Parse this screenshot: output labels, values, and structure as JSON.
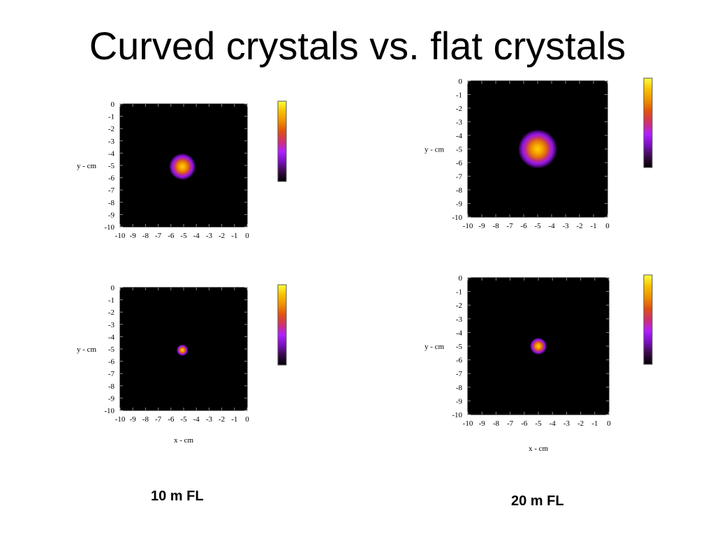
{
  "slide": {
    "title": "Curved crystals vs. flat crystals",
    "captions": [
      "10 m FL",
      "20 m FL"
    ]
  },
  "colors": {
    "plot_background": "#000000",
    "colormap": [
      "#000000",
      "#3a0a4a",
      "#7a10c0",
      "#b020ff",
      "#d03070",
      "#e05010",
      "#f09000",
      "#f8c000",
      "#ffff40"
    ]
  },
  "chart_data": [
    {
      "type": "heatmap",
      "xlim": [
        -10,
        0
      ],
      "ylim": [
        -10,
        0
      ],
      "xticks": [
        -10,
        -9,
        -8,
        -7,
        -6,
        -5,
        -4,
        -3,
        -2,
        -1,
        0
      ],
      "yticks": [
        0,
        -1,
        -2,
        -3,
        -4,
        -5,
        -6,
        -7,
        -8,
        -9,
        -10
      ],
      "xlabel": "",
      "ylabel": "y - cm",
      "spot": {
        "center_x": -5.1,
        "center_y": -5.1,
        "radius_cm": 1.05
      },
      "colorbar": true
    },
    {
      "type": "heatmap",
      "xlim": [
        -10,
        0
      ],
      "ylim": [
        -10,
        0
      ],
      "xticks": [
        -10,
        -9,
        -8,
        -7,
        -6,
        -5,
        -4,
        -3,
        -2,
        -1,
        0
      ],
      "yticks": [
        0,
        -1,
        -2,
        -3,
        -4,
        -5,
        -6,
        -7,
        -8,
        -9,
        -10
      ],
      "xlabel": "",
      "ylabel": "y - cm",
      "spot": {
        "center_x": -5.0,
        "center_y": -5.0,
        "radius_cm": 1.4
      },
      "colorbar": true
    },
    {
      "type": "heatmap",
      "xlim": [
        -10,
        0
      ],
      "ylim": [
        -10,
        0
      ],
      "xticks": [
        -10,
        -9,
        -8,
        -7,
        -6,
        -5,
        -4,
        -3,
        -2,
        -1,
        0
      ],
      "yticks": [
        0,
        -1,
        -2,
        -3,
        -4,
        -5,
        -6,
        -7,
        -8,
        -9,
        -10
      ],
      "xlabel": "x - cm",
      "ylabel": "y - cm",
      "spot": {
        "center_x": -5.1,
        "center_y": -5.1,
        "radius_cm": 0.45
      },
      "colorbar": true
    },
    {
      "type": "heatmap",
      "xlim": [
        -10,
        0
      ],
      "ylim": [
        -10,
        0
      ],
      "xticks": [
        -10,
        -9,
        -8,
        -7,
        -6,
        -5,
        -4,
        -3,
        -2,
        -1,
        0
      ],
      "yticks": [
        0,
        -1,
        -2,
        -3,
        -4,
        -5,
        -6,
        -7,
        -8,
        -9,
        -10
      ],
      "xlabel": "x - cm",
      "ylabel": "y - cm",
      "spot": {
        "center_x": -5.0,
        "center_y": -5.0,
        "radius_cm": 0.6
      },
      "colorbar": true
    }
  ]
}
